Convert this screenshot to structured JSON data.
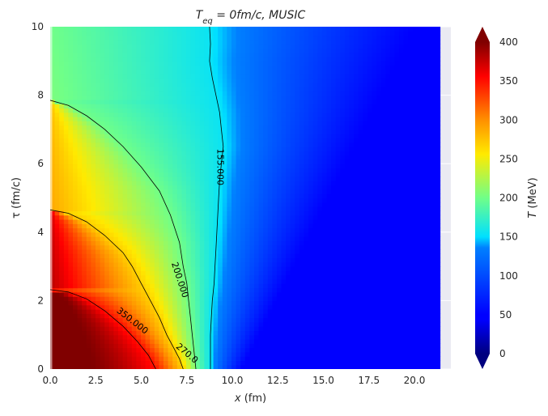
{
  "chart_data": {
    "type": "heatmap",
    "title": "T_{eq} = 0 fm/c, MUSIC",
    "title_parts": {
      "main": "T",
      "sub": "eq",
      "rest": " = 0fm/c, MUSIC"
    },
    "xlabel_var": "x",
    "xlabel_unit": " (fm)",
    "ylabel_var": "τ",
    "ylabel_unit": " (fm/c)",
    "xlim": [
      0,
      22.0
    ],
    "ylim": [
      0,
      10
    ],
    "x_ticks": [
      0.0,
      2.5,
      5.0,
      7.5,
      10.0,
      12.5,
      15.0,
      17.5,
      20.0
    ],
    "x_tick_labels": [
      "0.0",
      "2.5",
      "5.0",
      "7.5",
      "10.0",
      "12.5",
      "15.0",
      "17.5",
      "20.0"
    ],
    "y_ticks": [
      0,
      2,
      4,
      6,
      8,
      10
    ],
    "y_tick_labels": [
      "0",
      "2",
      "4",
      "6",
      "8",
      "10"
    ],
    "data_x_max": 21.4,
    "colormap": "jet",
    "colorbar": {
      "label": "T (MeV)",
      "label_var": "T",
      "label_unit": " (MeV)",
      "range": [
        0,
        400
      ],
      "ticks": [
        0,
        50,
        100,
        150,
        200,
        250,
        300,
        350,
        400
      ],
      "tick_labels": [
        "0",
        "50",
        "100",
        "150",
        "200",
        "250",
        "300",
        "350",
        "400"
      ],
      "extend": "both"
    },
    "contours": [
      {
        "level": 155,
        "label": "155.000",
        "points": [
          [
            8.75,
            10
          ],
          [
            8.8,
            9.5
          ],
          [
            8.75,
            9.0
          ],
          [
            8.9,
            8.5
          ],
          [
            9.1,
            8.0
          ],
          [
            9.3,
            7.5
          ],
          [
            9.4,
            7.0
          ],
          [
            9.5,
            6.5
          ],
          [
            9.4,
            6.0
          ],
          [
            9.3,
            5.5
          ],
          [
            9.25,
            5.0
          ],
          [
            9.2,
            4.5
          ],
          [
            9.15,
            4.0
          ],
          [
            9.1,
            3.5
          ],
          [
            9.05,
            3.0
          ],
          [
            9.0,
            2.5
          ],
          [
            8.9,
            2.0
          ],
          [
            8.85,
            1.5
          ],
          [
            8.8,
            1.0
          ],
          [
            8.8,
            0.5
          ],
          [
            8.8,
            0
          ]
        ]
      },
      {
        "level": 200,
        "label": "200.000",
        "points": [
          [
            0,
            7.85
          ],
          [
            1.0,
            7.7
          ],
          [
            2.0,
            7.4
          ],
          [
            3.0,
            7.0
          ],
          [
            4.0,
            6.5
          ],
          [
            5.0,
            5.9
          ],
          [
            6.0,
            5.2
          ],
          [
            6.6,
            4.5
          ],
          [
            7.1,
            3.7
          ],
          [
            7.3,
            3.0
          ],
          [
            7.5,
            2.5
          ],
          [
            7.6,
            2.0
          ],
          [
            7.7,
            1.5
          ],
          [
            7.8,
            1.0
          ],
          [
            7.9,
            0.5
          ],
          [
            8.0,
            0
          ]
        ]
      },
      {
        "level": 270,
        "label": "270.0",
        "points": [
          [
            0,
            4.65
          ],
          [
            1.0,
            4.55
          ],
          [
            2.0,
            4.3
          ],
          [
            3.0,
            3.9
          ],
          [
            4.0,
            3.4
          ],
          [
            4.5,
            3.0
          ],
          [
            5.0,
            2.5
          ],
          [
            5.5,
            2.0
          ],
          [
            6.0,
            1.5
          ],
          [
            6.4,
            1.0
          ],
          [
            6.8,
            0.6
          ],
          [
            7.1,
            0.3
          ],
          [
            7.3,
            0
          ]
        ]
      },
      {
        "level": 350,
        "label": "350.000",
        "points": [
          [
            0,
            2.32
          ],
          [
            1.0,
            2.25
          ],
          [
            2.0,
            2.05
          ],
          [
            3.0,
            1.7
          ],
          [
            4.0,
            1.25
          ],
          [
            4.8,
            0.8
          ],
          [
            5.4,
            0.4
          ],
          [
            5.8,
            0
          ]
        ]
      }
    ]
  }
}
